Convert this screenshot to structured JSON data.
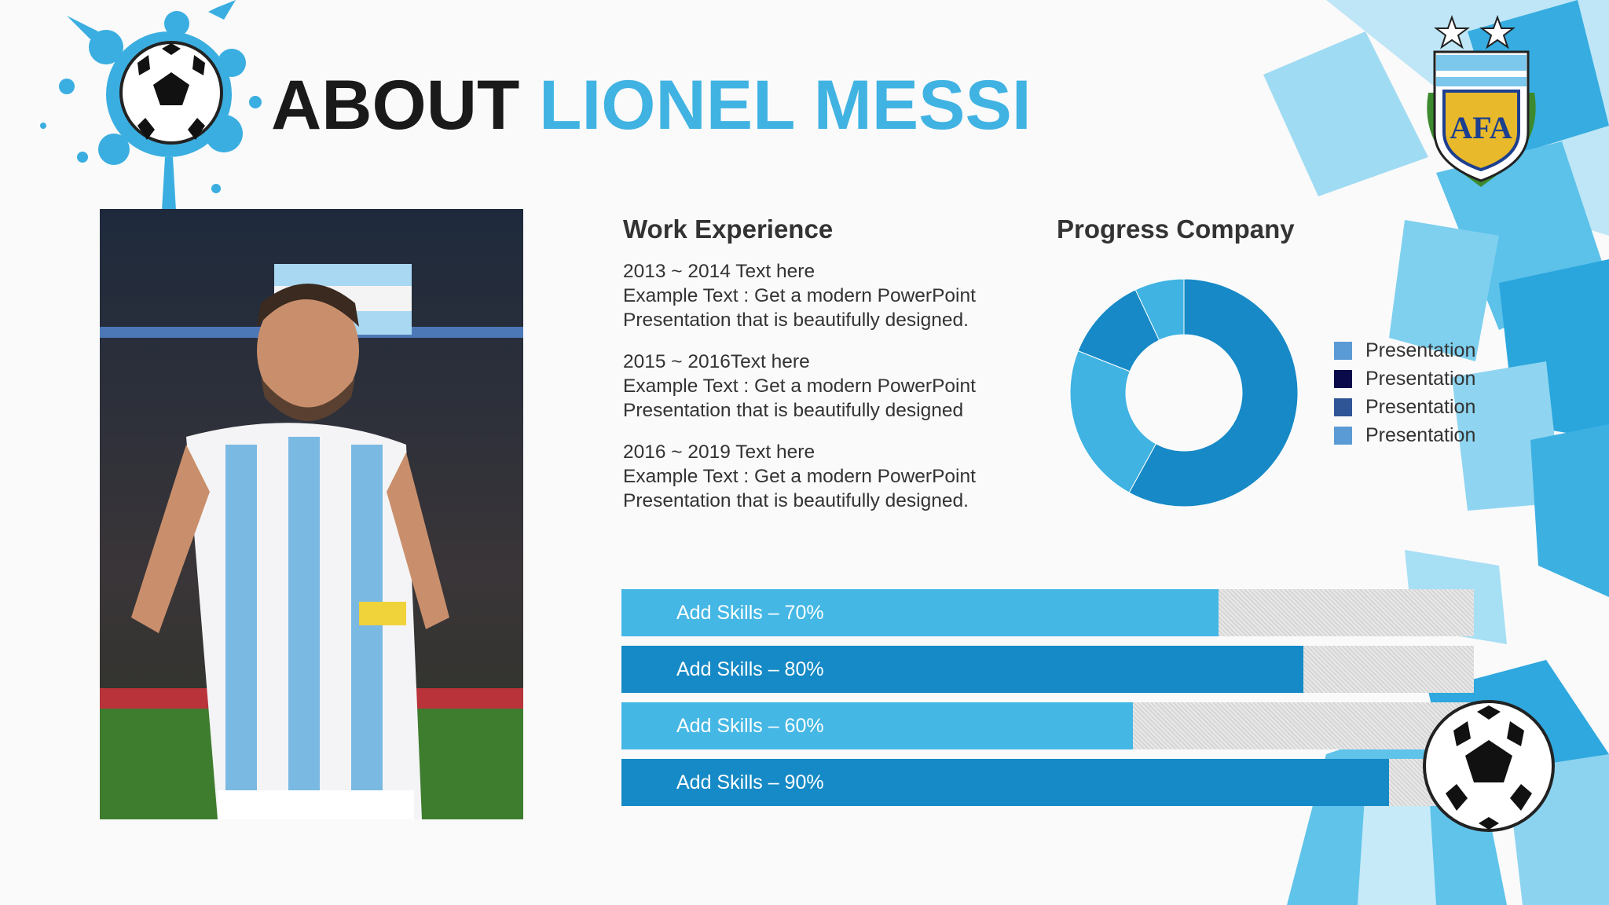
{
  "title": {
    "part1": "ABOUT",
    "part2": "LIONEL MESSI"
  },
  "work": {
    "heading": "Work Experience",
    "entries": [
      {
        "period": "2013 ~ 2014  Text here",
        "line1": "Example Text : Get a modern PowerPoint",
        "line2": "Presentation that is beautifully designed."
      },
      {
        "period": "2015 ~ 2016Text here",
        "line1": "Example Text : Get a modern PowerPoint",
        "line2": "Presentation that is beautifully designed"
      },
      {
        "period": "2016 ~ 2019  Text here",
        "line1": "Example Text : Get a modern PowerPoint",
        "line2": "Presentation that is beautifully designed."
      }
    ]
  },
  "progress": {
    "heading": "Progress Company",
    "legend": [
      {
        "label": "Presentation",
        "color": "#5b9bd5"
      },
      {
        "label": "Presentation",
        "color": "#0a0a4a"
      },
      {
        "label": "Presentation",
        "color": "#2f5597"
      },
      {
        "label": "Presentation",
        "color": "#5b9bd5"
      }
    ]
  },
  "chart_data": {
    "type": "pie",
    "title": "Progress Company",
    "categories": [
      "Presentation",
      "Presentation",
      "Presentation",
      "Presentation"
    ],
    "values": [
      58,
      23,
      12,
      7
    ],
    "colors": [
      "#1789c6",
      "#40b3e2",
      "#1789c6",
      "#40b3e2"
    ]
  },
  "skills": [
    {
      "label": "Add Skills – 70%",
      "value": 0.7,
      "color": "#44b7e4"
    },
    {
      "label": "Add Skills – 80%",
      "value": 0.8,
      "color": "#168ac6"
    },
    {
      "label": "Add Skills – 60%",
      "value": 0.6,
      "color": "#44b7e4"
    },
    {
      "label": "Add Skills – 90%",
      "value": 0.9,
      "color": "#168ac6"
    }
  ],
  "colors": {
    "accent": "#40b3e2",
    "dark_blue": "#168ac6",
    "title_dark": "#1a1a1a"
  },
  "icons": {
    "top": "soccer-ball-icon",
    "logo": "afa-crest-logo",
    "bottom": "soccer-ball-icon"
  }
}
